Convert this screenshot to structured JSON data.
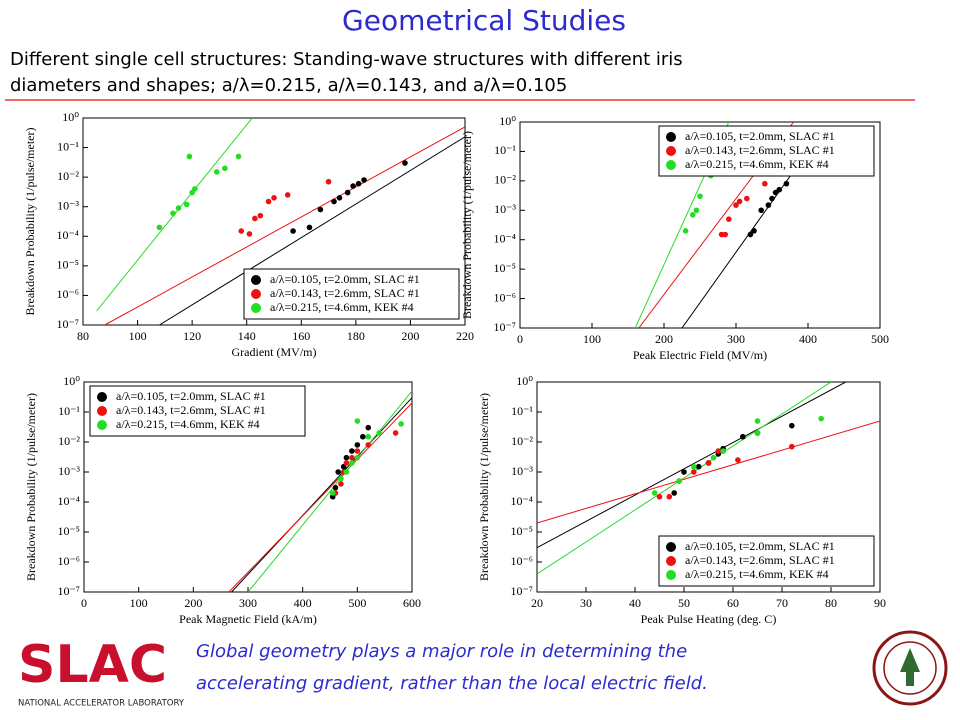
{
  "title": "Geometrical Studies",
  "subtitle": [
    "Different single cell structures: Standing-wave structures with different iris",
    "diameters and shapes;  a/λ=0.215, a/λ=0.143, and  a/λ=0.105"
  ],
  "footer": [
    "Global geometry plays a major role in determining the",
    "accelerating gradient, rather than the local electric field."
  ],
  "logo": {
    "text": "SLAC",
    "subtext": "NATIONAL ACCELERATOR LABORATORY"
  },
  "chart_data": [
    {
      "type": "scatter",
      "xlabel": "Gradient (MV/m)",
      "ylabel": "Breakdown Probability (1/pulse/meter)",
      "log_y": true,
      "legend": "lower right",
      "xlim": [
        80,
        220
      ],
      "xticks": [
        80,
        100,
        120,
        140,
        160,
        180,
        200,
        220
      ],
      "ylim": [
        1e-07,
        1
      ],
      "yticks": [
        {
          "value": 1,
          "label": "10⁰"
        },
        {
          "value": 0.1,
          "label": "10⁻¹"
        },
        {
          "value": 0.01,
          "label": "10⁻²"
        },
        {
          "value": 0.001,
          "label": "10⁻³"
        },
        {
          "value": 0.0001,
          "label": "10⁻⁴"
        },
        {
          "value": 1e-05,
          "label": "10⁻⁵"
        },
        {
          "value": 1e-06,
          "label": "10⁻⁶"
        },
        {
          "value": 1e-07,
          "label": "10⁻⁷"
        }
      ],
      "series": [
        {
          "name": "a/λ=0.105, t=2.0mm, SLAC #1",
          "color": "#000000",
          "x": [
            157,
            163,
            167,
            172,
            174,
            177,
            179,
            181,
            183,
            198
          ],
          "y": [
            0.00015,
            0.0002,
            0.0008,
            0.0015,
            0.002,
            0.003,
            0.005,
            0.006,
            0.008,
            0.03
          ]
        },
        {
          "name": "a/λ=0.143, t=2.6mm, SLAC #1",
          "color": "#ee1111",
          "x": [
            138,
            141,
            143,
            145,
            148,
            150,
            155,
            170
          ],
          "y": [
            0.00015,
            0.00012,
            0.0004,
            0.0005,
            0.0015,
            0.002,
            0.0025,
            0.007
          ]
        },
        {
          "name": "a/λ=0.215, t=4.6mm, KEK #4",
          "color": "#22dd22",
          "x": [
            108,
            113,
            115,
            118,
            120,
            121,
            129,
            132,
            137,
            119
          ],
          "y": [
            0.0002,
            0.0006,
            0.0009,
            0.0012,
            0.003,
            0.004,
            0.015,
            0.02,
            0.05,
            0.05
          ]
        }
      ],
      "fits": [
        {
          "color": "#000000",
          "x": [
            108,
            222
          ],
          "y": [
            1e-07,
            0.3
          ]
        },
        {
          "color": "#ee1111",
          "x": [
            88,
            220
          ],
          "y": [
            1e-07,
            0.5
          ]
        },
        {
          "color": "#22dd22",
          "x": [
            85,
            142
          ],
          "y": [
            3e-07,
            1
          ]
        }
      ]
    },
    {
      "type": "scatter",
      "xlabel": "Peak Electric Field (MV/m)",
      "ylabel": "Breakdown Probability (1/pulse/meter)",
      "log_y": true,
      "legend": "upper right",
      "xlim": [
        0,
        500
      ],
      "xticks": [
        0,
        100,
        200,
        300,
        400,
        500
      ],
      "ylim": [
        1e-07,
        1
      ],
      "yticks": [
        {
          "value": 1,
          "label": "10⁰"
        },
        {
          "value": 0.1,
          "label": "10⁻¹"
        },
        {
          "value": 0.01,
          "label": "10⁻²"
        },
        {
          "value": 0.001,
          "label": "10⁻³"
        },
        {
          "value": 0.0001,
          "label": "10⁻⁴"
        },
        {
          "value": 1e-05,
          "label": "10⁻⁵"
        },
        {
          "value": 1e-06,
          "label": "10⁻⁶"
        },
        {
          "value": 1e-07,
          "label": "10⁻⁷"
        }
      ],
      "series": [
        {
          "name": "a/λ=0.105, t=2.0mm, SLAC #1",
          "color": "#000000",
          "x": [
            320,
            325,
            335,
            345,
            350,
            355,
            360,
            370,
            400
          ],
          "y": [
            0.00015,
            0.0002,
            0.001,
            0.0015,
            0.0025,
            0.004,
            0.005,
            0.008,
            0.03
          ]
        },
        {
          "name": "a/λ=0.143, t=2.6mm, SLAC #1",
          "color": "#ee1111",
          "x": [
            280,
            285,
            290,
            300,
            305,
            315,
            340
          ],
          "y": [
            0.00015,
            0.00015,
            0.0005,
            0.0015,
            0.002,
            0.0025,
            0.008
          ]
        },
        {
          "name": "a/λ=0.215, t=4.6mm, KEK #4",
          "color": "#22dd22",
          "x": [
            230,
            240,
            245,
            250,
            265,
            270,
            285,
            255
          ],
          "y": [
            0.0002,
            0.0007,
            0.001,
            0.003,
            0.015,
            0.03,
            0.05,
            0.05
          ]
        }
      ],
      "fits": [
        {
          "color": "#000000",
          "x": [
            225,
            420
          ],
          "y": [
            1e-07,
            0.5
          ]
        },
        {
          "color": "#ee1111",
          "x": [
            165,
            380
          ],
          "y": [
            1e-07,
            1
          ]
        },
        {
          "color": "#22dd22",
          "x": [
            160,
            290
          ],
          "y": [
            1e-07,
            1
          ]
        }
      ]
    },
    {
      "type": "scatter",
      "xlabel": "Peak Magnetic Field (kA/m)",
      "ylabel": "Breakdown Probability (1/pulse/meter)",
      "log_y": true,
      "legend": "upper left",
      "xlim": [
        0,
        600
      ],
      "xticks": [
        0,
        100,
        200,
        300,
        400,
        500,
        600
      ],
      "ylim": [
        1e-07,
        1
      ],
      "yticks": [
        {
          "value": 1,
          "label": "10⁰"
        },
        {
          "value": 0.1,
          "label": "10⁻¹"
        },
        {
          "value": 0.01,
          "label": "10⁻²"
        },
        {
          "value": 0.001,
          "label": "10⁻³"
        },
        {
          "value": 0.0001,
          "label": "10⁻⁴"
        },
        {
          "value": 1e-05,
          "label": "10⁻⁵"
        },
        {
          "value": 1e-06,
          "label": "10⁻⁶"
        },
        {
          "value": 1e-07,
          "label": "10⁻⁷"
        }
      ],
      "series": [
        {
          "name": "a/λ=0.105, t=2.0mm, SLAC #1",
          "color": "#000000",
          "x": [
            455,
            460,
            465,
            475,
            480,
            490,
            500,
            510,
            520
          ],
          "y": [
            0.00015,
            0.0003,
            0.001,
            0.0015,
            0.003,
            0.005,
            0.008,
            0.015,
            0.03
          ]
        },
        {
          "name": "a/λ=0.143, t=2.6mm, SLAC #1",
          "color": "#ee1111",
          "x": [
            460,
            470,
            475,
            480,
            490,
            500,
            520,
            570
          ],
          "y": [
            0.0002,
            0.0004,
            0.001,
            0.002,
            0.003,
            0.005,
            0.008,
            0.02
          ]
        },
        {
          "name": "a/λ=0.215, t=4.6mm, KEK #4",
          "color": "#22dd22",
          "x": [
            455,
            470,
            480,
            490,
            500,
            520,
            540,
            500,
            580
          ],
          "y": [
            0.0002,
            0.0006,
            0.001,
            0.002,
            0.003,
            0.015,
            0.02,
            0.05,
            0.04
          ]
        }
      ],
      "fits": [
        {
          "color": "#000000",
          "x": [
            270,
            600
          ],
          "y": [
            1e-07,
            0.3
          ]
        },
        {
          "color": "#ee1111",
          "x": [
            265,
            600
          ],
          "y": [
            1e-07,
            0.2
          ]
        },
        {
          "color": "#22dd22",
          "x": [
            300,
            600
          ],
          "y": [
            1e-07,
            0.5
          ]
        }
      ]
    },
    {
      "type": "scatter",
      "xlabel": "Peak Pulse Heating (deg. C)",
      "ylabel": "Breakdown Probability (1/pulse/meter)",
      "log_y": true,
      "legend": "lower right",
      "xlim": [
        20,
        90
      ],
      "xticks": [
        20,
        30,
        40,
        50,
        60,
        70,
        80,
        90
      ],
      "ylim": [
        1e-07,
        1
      ],
      "yticks": [
        {
          "value": 1,
          "label": "10⁰"
        },
        {
          "value": 0.1,
          "label": "10⁻¹"
        },
        {
          "value": 0.01,
          "label": "10⁻²"
        },
        {
          "value": 0.001,
          "label": "10⁻³"
        },
        {
          "value": 0.0001,
          "label": "10⁻⁴"
        },
        {
          "value": 1e-05,
          "label": "10⁻⁵"
        },
        {
          "value": 1e-06,
          "label": "10⁻⁶"
        },
        {
          "value": 1e-07,
          "label": "10⁻⁷"
        }
      ],
      "series": [
        {
          "name": "a/λ=0.105, t=2.0mm, SLAC #1",
          "color": "#000000",
          "x": [
            48,
            50,
            53,
            55,
            57,
            58,
            62,
            65,
            72
          ],
          "y": [
            0.0002,
            0.001,
            0.0015,
            0.002,
            0.004,
            0.006,
            0.015,
            0.02,
            0.035
          ]
        },
        {
          "name": "a/λ=0.143, t=2.6mm, SLAC #1",
          "color": "#ee1111",
          "x": [
            45,
            47,
            49,
            52,
            55,
            57,
            61,
            72
          ],
          "y": [
            0.00015,
            0.00015,
            0.0005,
            0.001,
            0.002,
            0.005,
            0.0025,
            0.007
          ]
        },
        {
          "name": "a/λ=0.215, t=4.6mm, KEK #4",
          "color": "#22dd22",
          "x": [
            44,
            49,
            52,
            56,
            58,
            65,
            65,
            78
          ],
          "y": [
            0.0002,
            0.0005,
            0.0015,
            0.003,
            0.005,
            0.02,
            0.05,
            0.06
          ]
        }
      ],
      "fits": [
        {
          "color": "#000000",
          "x": [
            20,
            83
          ],
          "y": [
            3e-06,
            1
          ]
        },
        {
          "color": "#ee1111",
          "x": [
            20,
            90
          ],
          "y": [
            2e-05,
            0.05
          ]
        },
        {
          "color": "#22dd22",
          "x": [
            20,
            80
          ],
          "y": [
            4e-07,
            1
          ]
        }
      ]
    }
  ]
}
